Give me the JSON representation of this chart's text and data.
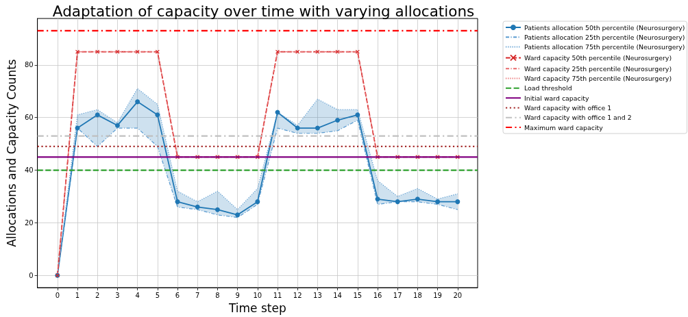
{
  "chart_data": {
    "type": "line",
    "title": "Adaptation of capacity over time with varying allocations",
    "xlabel": "Time step",
    "ylabel": "Allocations and Capacity Counts",
    "x": [
      0,
      1,
      2,
      3,
      4,
      5,
      6,
      7,
      8,
      9,
      10,
      11,
      12,
      13,
      14,
      15,
      16,
      17,
      18,
      19,
      20
    ],
    "xlim": [
      -1,
      21
    ],
    "xticks": [
      0,
      1,
      2,
      3,
      4,
      5,
      6,
      7,
      8,
      9,
      10,
      11,
      12,
      13,
      14,
      15,
      16,
      17,
      18,
      19,
      20
    ],
    "ylim": [
      -4.65,
      97.65
    ],
    "yticks": [
      0,
      20,
      40,
      60,
      80
    ],
    "grid": true,
    "legend": "top right",
    "series": [
      {
        "name": "Patients allocation 50th percentile (Neurosurgery)",
        "color": "#1f77b4",
        "marker": "circle",
        "line_style": "solid",
        "values": [
          0,
          56,
          61,
          57,
          66,
          61,
          28,
          26,
          25,
          23,
          28,
          62,
          56,
          56,
          59,
          61,
          29,
          28,
          29,
          28,
          28
        ],
        "lower": [
          0,
          56,
          49,
          56,
          56,
          49,
          26,
          25,
          23,
          22,
          27,
          56,
          54,
          54,
          55,
          59,
          27,
          28,
          28,
          27,
          25
        ],
        "upper": [
          0,
          61,
          63,
          58,
          71,
          65,
          32,
          28,
          32,
          25,
          33,
          62,
          57,
          67,
          63,
          63,
          36,
          30,
          33,
          29,
          31
        ]
      },
      {
        "name": "Patients allocation 25th percentile (Neurosurgery)",
        "color": "#5a9bd0",
        "line_style": "dashdot",
        "values": [
          0,
          56,
          49,
          56,
          56,
          49,
          26,
          25,
          23,
          22,
          27,
          56,
          54,
          54,
          55,
          59,
          27,
          28,
          28,
          27,
          25
        ]
      },
      {
        "name": "Patients allocation 75th percentile (Neurosurgery)",
        "color": "#5a9bd0",
        "line_style": "dotted",
        "values": [
          0,
          61,
          63,
          58,
          71,
          65,
          32,
          28,
          32,
          25,
          33,
          62,
          57,
          67,
          63,
          63,
          36,
          30,
          33,
          29,
          31
        ]
      },
      {
        "name": "Ward capacity 50th percentile (Neurosurgery)",
        "color": "#d62728",
        "marker": "cross",
        "line_style": "dashed",
        "values": [
          0,
          85,
          85,
          85,
          85,
          85,
          45,
          45,
          45,
          45,
          45,
          85,
          85,
          85,
          85,
          85,
          45,
          45,
          45,
          45,
          45
        ]
      },
      {
        "name": "Ward capacity 25th percentile (Neurosurgery)",
        "color": "#e8696b",
        "line_style": "dashdot",
        "values": [
          0,
          85,
          85,
          85,
          85,
          85,
          45,
          45,
          45,
          45,
          45,
          85,
          85,
          85,
          85,
          85,
          45,
          45,
          45,
          45,
          45
        ]
      },
      {
        "name": "Ward capacity 75th percentile (Neurosurgery)",
        "color": "#e8696b",
        "line_style": "dotted",
        "values": [
          0,
          85,
          85,
          85,
          85,
          85,
          45,
          45,
          45,
          45,
          45,
          85,
          85,
          85,
          85,
          85,
          45,
          45,
          45,
          45,
          45
        ]
      }
    ],
    "ref_lines": [
      {
        "axis": "y",
        "value": 40,
        "label": "Load threshold",
        "color": "#2ca02c",
        "line_style": "dashed"
      },
      {
        "axis": "y",
        "value": 45,
        "label": "Initial ward capacity",
        "color": "#800080",
        "line_style": "solid"
      },
      {
        "axis": "y",
        "value": 49,
        "label": "Ward capacity with office 1",
        "color": "#a52a2a",
        "line_style": "dotted"
      },
      {
        "axis": "y",
        "value": 53,
        "label": "Ward capacity with office 1 and 2",
        "color": "#c0c0c0",
        "line_style": "dashdot"
      },
      {
        "axis": "y",
        "value": 93,
        "label": "Maximum ward capacity",
        "color": "#ff0000",
        "line_style": "dashdot"
      }
    ]
  }
}
